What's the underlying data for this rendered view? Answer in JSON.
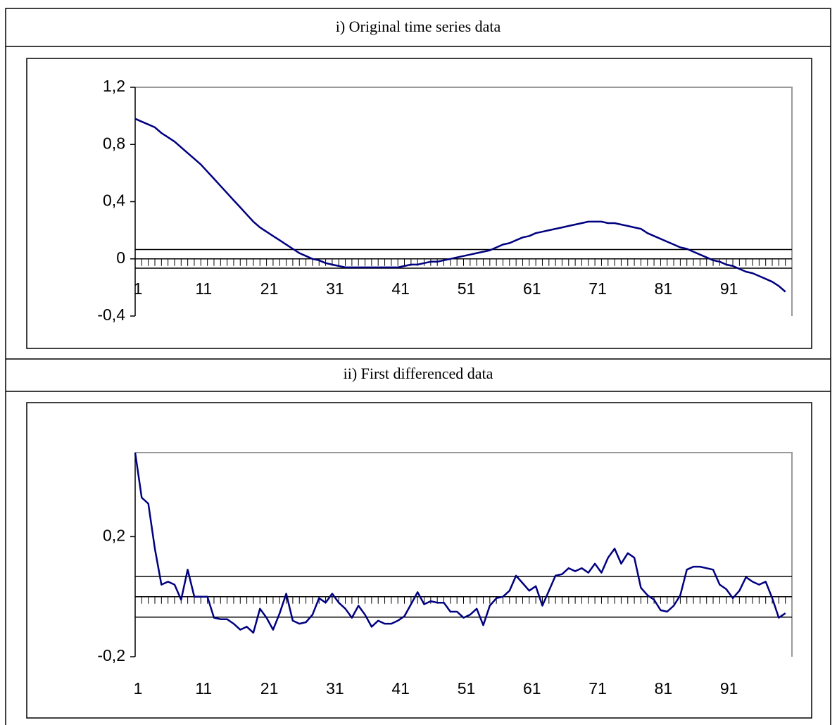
{
  "chart_data": [
    {
      "type": "line",
      "title": "i) Original time series data",
      "color": "#000080",
      "x": [
        1,
        2,
        3,
        4,
        5,
        6,
        7,
        8,
        9,
        10,
        11,
        12,
        13,
        14,
        15,
        16,
        17,
        18,
        19,
        20,
        21,
        22,
        23,
        24,
        25,
        26,
        27,
        28,
        29,
        30,
        31,
        32,
        33,
        34,
        35,
        36,
        37,
        38,
        39,
        40,
        41,
        42,
        43,
        44,
        45,
        46,
        47,
        48,
        49,
        50,
        51,
        52,
        53,
        54,
        55,
        56,
        57,
        58,
        59,
        60,
        61,
        62,
        63,
        64,
        65,
        66,
        67,
        68,
        69,
        70,
        71,
        72,
        73,
        74,
        75,
        76,
        77,
        78,
        79,
        80,
        81,
        82,
        83,
        84,
        85,
        86,
        87,
        88,
        89,
        90,
        91,
        92,
        93,
        94,
        95,
        96,
        97,
        98,
        99,
        100
      ],
      "values": [
        0.98,
        0.96,
        0.94,
        0.92,
        0.88,
        0.85,
        0.82,
        0.78,
        0.74,
        0.7,
        0.66,
        0.61,
        0.56,
        0.51,
        0.46,
        0.41,
        0.36,
        0.31,
        0.26,
        0.22,
        0.19,
        0.16,
        0.13,
        0.1,
        0.07,
        0.04,
        0.02,
        0.0,
        -0.01,
        -0.03,
        -0.04,
        -0.05,
        -0.06,
        -0.06,
        -0.06,
        -0.06,
        -0.06,
        -0.06,
        -0.06,
        -0.06,
        -0.06,
        -0.05,
        -0.04,
        -0.04,
        -0.03,
        -0.02,
        -0.02,
        -0.01,
        0.0,
        0.01,
        0.02,
        0.03,
        0.04,
        0.05,
        0.06,
        0.08,
        0.1,
        0.11,
        0.13,
        0.15,
        0.16,
        0.18,
        0.19,
        0.2,
        0.21,
        0.22,
        0.23,
        0.24,
        0.25,
        0.26,
        0.26,
        0.26,
        0.25,
        0.25,
        0.24,
        0.23,
        0.22,
        0.21,
        0.18,
        0.16,
        0.14,
        0.12,
        0.1,
        0.08,
        0.07,
        0.05,
        0.03,
        0.01,
        -0.01,
        -0.02,
        -0.04,
        -0.05,
        -0.07,
        -0.09,
        -0.1,
        -0.12,
        -0.14,
        -0.16,
        -0.19,
        -0.23
      ],
      "xlim": [
        1,
        101
      ],
      "ylim": [
        -0.4,
        1.2
      ],
      "xticks": [
        1,
        11,
        21,
        31,
        41,
        51,
        61,
        71,
        81,
        91
      ],
      "yticks": [
        {
          "value": -0.4,
          "label": "-0,4"
        },
        {
          "value": 0,
          "label": "0"
        },
        {
          "value": 0.4,
          "label": "0,4"
        },
        {
          "value": 0.8,
          "label": "0,8"
        },
        {
          "value": 1.2,
          "label": "1,2"
        }
      ],
      "reference_lines": [
        0.065,
        -0.065
      ]
    },
    {
      "type": "line",
      "title": "ii) First differenced data",
      "color": "#000080",
      "x": [
        1,
        2,
        3,
        4,
        5,
        6,
        7,
        8,
        9,
        10,
        11,
        12,
        13,
        14,
        15,
        16,
        17,
        18,
        19,
        20,
        21,
        22,
        23,
        24,
        25,
        26,
        27,
        28,
        29,
        30,
        31,
        32,
        33,
        34,
        35,
        36,
        37,
        38,
        39,
        40,
        41,
        42,
        43,
        44,
        45,
        46,
        47,
        48,
        49,
        50,
        51,
        52,
        53,
        54,
        55,
        56,
        57,
        58,
        59,
        60,
        61,
        62,
        63,
        64,
        65,
        66,
        67,
        68,
        69,
        70,
        71,
        72,
        73,
        74,
        75,
        76,
        77,
        78,
        79,
        80,
        81,
        82,
        83,
        84,
        85,
        86,
        87,
        88,
        89,
        90,
        91,
        92,
        93,
        94,
        95,
        96,
        97,
        98,
        99,
        100
      ],
      "values": [
        0.48,
        0.33,
        0.31,
        0.16,
        0.04,
        0.05,
        0.04,
        -0.01,
        0.09,
        0.0,
        0.0,
        0.0,
        -0.07,
        -0.075,
        -0.075,
        -0.09,
        -0.11,
        -0.1,
        -0.12,
        -0.04,
        -0.07,
        -0.11,
        -0.055,
        0.01,
        -0.08,
        -0.09,
        -0.085,
        -0.06,
        -0.005,
        -0.02,
        0.01,
        -0.02,
        -0.04,
        -0.07,
        -0.03,
        -0.06,
        -0.1,
        -0.08,
        -0.09,
        -0.09,
        -0.08,
        -0.065,
        -0.025,
        0.015,
        -0.025,
        -0.015,
        -0.02,
        -0.02,
        -0.05,
        -0.05,
        -0.07,
        -0.06,
        -0.04,
        -0.095,
        -0.03,
        -0.005,
        0.0,
        0.02,
        0.07,
        0.045,
        0.02,
        0.035,
        -0.03,
        0.02,
        0.07,
        0.075,
        0.095,
        0.085,
        0.095,
        0.08,
        0.11,
        0.08,
        0.13,
        0.16,
        0.11,
        0.145,
        0.13,
        0.03,
        0.005,
        -0.01,
        -0.045,
        -0.05,
        -0.03,
        0.005,
        0.09,
        0.1,
        0.1,
        0.095,
        0.09,
        0.04,
        0.025,
        -0.005,
        0.02,
        0.065,
        0.05,
        0.04,
        0.05,
        -0.005,
        -0.07,
        -0.055
      ],
      "xlim": [
        1,
        101
      ],
      "ylim": [
        -0.2,
        0.48
      ],
      "xticks": [
        1,
        11,
        21,
        31,
        41,
        51,
        61,
        71,
        81,
        91
      ],
      "yticks": [
        {
          "value": -0.2,
          "label": "-0,2"
        },
        {
          "value": 0.2,
          "label": "0,2"
        }
      ],
      "reference_lines": [
        0.068,
        -0.068
      ]
    }
  ]
}
